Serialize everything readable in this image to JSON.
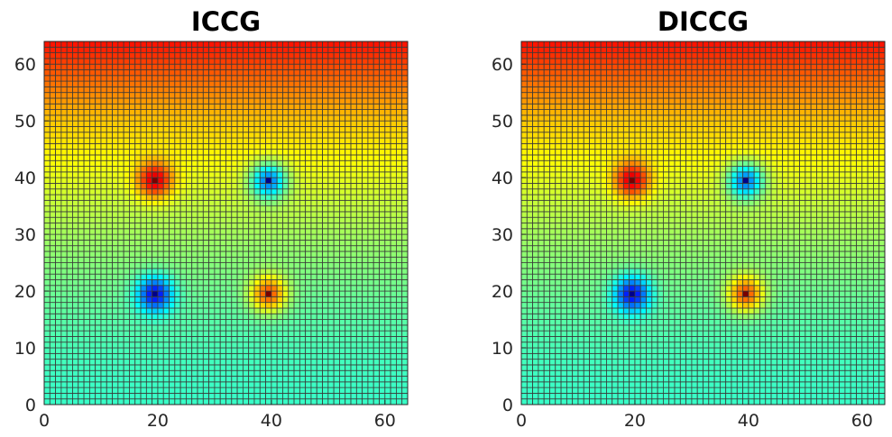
{
  "chart_data": [
    {
      "type": "heatmap",
      "title": "ICCG",
      "xlabel": "",
      "ylabel": "",
      "xlim": [
        0,
        64
      ],
      "ylim": [
        0,
        64
      ],
      "grid_cells": [
        64,
        64
      ],
      "xticks": [
        0,
        20,
        40,
        60
      ],
      "yticks": [
        0,
        10,
        20,
        30,
        40,
        50,
        60
      ],
      "colormap": "jet",
      "wells": [
        {
          "x": 19.5,
          "y": 39.5,
          "type": "high"
        },
        {
          "x": 39.5,
          "y": 39.5,
          "type": "low"
        },
        {
          "x": 19.5,
          "y": 19.5,
          "type": "low"
        },
        {
          "x": 39.5,
          "y": 19.5,
          "type": "high"
        }
      ]
    },
    {
      "type": "heatmap",
      "title": "DICCG",
      "xlabel": "",
      "ylabel": "",
      "xlim": [
        0,
        64
      ],
      "ylim": [
        0,
        64
      ],
      "grid_cells": [
        64,
        64
      ],
      "xticks": [
        0,
        20,
        40,
        60
      ],
      "yticks": [
        0,
        10,
        20,
        30,
        40,
        50,
        60
      ],
      "colormap": "jet",
      "wells": [
        {
          "x": 19.5,
          "y": 39.5,
          "type": "high"
        },
        {
          "x": 39.5,
          "y": 39.5,
          "type": "low"
        },
        {
          "x": 19.5,
          "y": 19.5,
          "type": "low"
        },
        {
          "x": 39.5,
          "y": 19.5,
          "type": "high"
        }
      ]
    }
  ],
  "colors": {
    "cell_edge": "#3a3a3a",
    "axis": "#262626"
  }
}
